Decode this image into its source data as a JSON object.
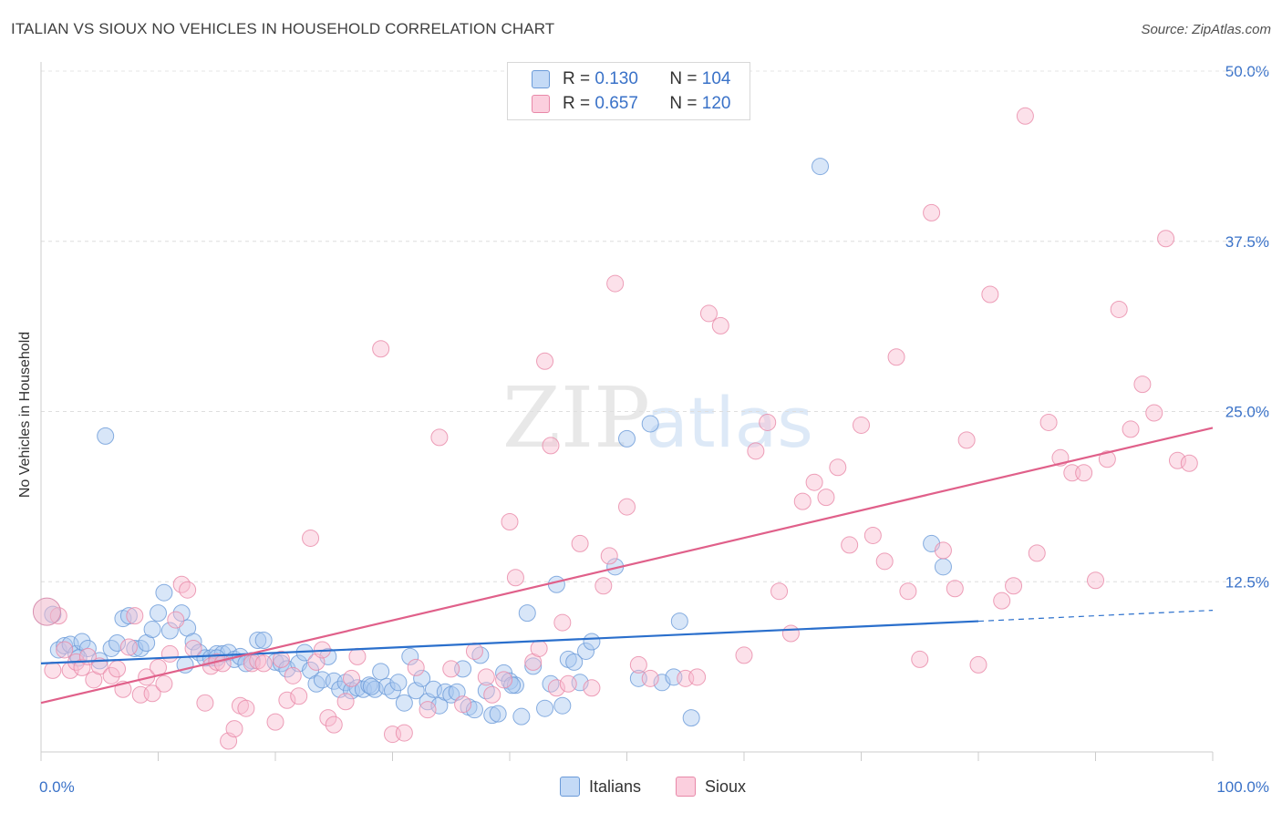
{
  "title": "ITALIAN VS SIOUX NO VEHICLES IN HOUSEHOLD CORRELATION CHART",
  "source": "Source: ZipAtlas.com",
  "watermark": {
    "zip": "ZIP",
    "atlas": "atlas"
  },
  "legend": {
    "rows": [
      {
        "r_label": "R =",
        "r_value": "0.130",
        "n_label": "N =",
        "n_value": "104",
        "color": "#a8c8f0",
        "edge": "#6a9ad8"
      },
      {
        "r_label": "R =",
        "r_value": "0.657",
        "n_label": "N =",
        "n_value": "120",
        "color": "#f8bcd0",
        "edge": "#e888a8"
      }
    ]
  },
  "bottom_legend": [
    {
      "label": "Italians",
      "color": "#a8c8f0",
      "edge": "#6a9ad8"
    },
    {
      "label": "Sioux",
      "color": "#f8bcd0",
      "edge": "#e888a8"
    }
  ],
  "chart_data": {
    "type": "scatter",
    "title": "ITALIAN VS SIOUX NO VEHICLES IN HOUSEHOLD CORRELATION CHART",
    "xlabel": "",
    "ylabel": "No Vehicles in Household",
    "x_tick_labels": [
      "0.0%",
      "100.0%"
    ],
    "y_tick_labels": [
      "12.5%",
      "25.0%",
      "37.5%",
      "50.0%"
    ],
    "y_ticks": [
      12.5,
      25.0,
      37.5,
      50.0
    ],
    "xlim": [
      0,
      100
    ],
    "ylim": [
      0,
      50
    ],
    "grid": true,
    "legend_position": "top-center",
    "series": [
      {
        "name": "Italians",
        "color": "#a8c8f0",
        "line_color": "#2a6fcc",
        "trend": {
          "x": [
            0,
            80
          ],
          "y": [
            6.5,
            9.6
          ],
          "dashed_to": [
            100,
            10.4
          ]
        },
        "points": [
          [
            1.5,
            7.5
          ],
          [
            2,
            7.8
          ],
          [
            2.5,
            7.9
          ],
          [
            3,
            7.2
          ],
          [
            3.5,
            8.1
          ],
          [
            4,
            7.6
          ],
          [
            5,
            6.7
          ],
          [
            6,
            7.6
          ],
          [
            7,
            9.8
          ],
          [
            7.5,
            10
          ],
          [
            8,
            7.6
          ],
          [
            8.5,
            7.6
          ],
          [
            9,
            8
          ],
          [
            9.5,
            9
          ],
          [
            10,
            10.2
          ],
          [
            10.5,
            11.7
          ],
          [
            11,
            8.9
          ],
          [
            12,
            10.2
          ],
          [
            12.5,
            9.1
          ],
          [
            13,
            8.1
          ],
          [
            13.5,
            7.3
          ],
          [
            14,
            6.9
          ],
          [
            14.5,
            6.9
          ],
          [
            15,
            7.2
          ],
          [
            15.5,
            7.2
          ],
          [
            16,
            7.3
          ],
          [
            16.5,
            6.8
          ],
          [
            17,
            7
          ],
          [
            18,
            6.7
          ],
          [
            18.5,
            8.2
          ],
          [
            19,
            8.2
          ],
          [
            20,
            6.6
          ],
          [
            20.5,
            6.5
          ],
          [
            21,
            6.1
          ],
          [
            22,
            6.5
          ],
          [
            22.5,
            7.3
          ],
          [
            23,
            6
          ],
          [
            23.5,
            5
          ],
          [
            24,
            5.3
          ],
          [
            24.5,
            7
          ],
          [
            25,
            5.2
          ],
          [
            25.5,
            4.6
          ],
          [
            26,
            5.1
          ],
          [
            26.5,
            4.5
          ],
          [
            27,
            4.7
          ],
          [
            27.5,
            4.6
          ],
          [
            28,
            4.9
          ],
          [
            28.5,
            4.6
          ],
          [
            29,
            5.9
          ],
          [
            29.5,
            4.8
          ],
          [
            30,
            4.5
          ],
          [
            30.5,
            5.1
          ],
          [
            31,
            3.6
          ],
          [
            31.5,
            7
          ],
          [
            32,
            4.5
          ],
          [
            32.5,
            5.4
          ],
          [
            33,
            3.7
          ],
          [
            33.5,
            4.6
          ],
          [
            34,
            3.4
          ],
          [
            34.5,
            4.4
          ],
          [
            35,
            4.2
          ],
          [
            35.5,
            4.4
          ],
          [
            36,
            6.1
          ],
          [
            36.5,
            3.3
          ],
          [
            37,
            3.1
          ],
          [
            37.5,
            7.1
          ],
          [
            38,
            4.5
          ],
          [
            38.5,
            2.7
          ],
          [
            39,
            2.8
          ],
          [
            39.5,
            5.8
          ],
          [
            40,
            5.2
          ],
          [
            40.5,
            4.9
          ],
          [
            41,
            2.6
          ],
          [
            41.5,
            10.2
          ],
          [
            42,
            6.3
          ],
          [
            43,
            3.2
          ],
          [
            43.5,
            5
          ],
          [
            44,
            12.3
          ],
          [
            44.5,
            3.4
          ],
          [
            45,
            6.8
          ],
          [
            45.5,
            6.6
          ],
          [
            46,
            5.1
          ],
          [
            46.5,
            7.4
          ],
          [
            47,
            8.1
          ],
          [
            49,
            13.6
          ],
          [
            50,
            23
          ],
          [
            51,
            5.4
          ],
          [
            52,
            24.1
          ],
          [
            53,
            5.1
          ],
          [
            54,
            5.5
          ],
          [
            54.5,
            9.6
          ],
          [
            55.5,
            2.5
          ],
          [
            5.5,
            23.2
          ],
          [
            66.5,
            43
          ],
          [
            76,
            15.3
          ],
          [
            77,
            13.6
          ],
          [
            1,
            10.1
          ],
          [
            3.2,
            6.9
          ],
          [
            6.5,
            8
          ],
          [
            12.3,
            6.4
          ],
          [
            15,
            6.9
          ],
          [
            17.5,
            6.5
          ],
          [
            28.2,
            4.8
          ],
          [
            40.2,
            4.9
          ]
        ]
      },
      {
        "name": "Sioux",
        "color": "#f8bcd0",
        "line_color": "#e0608a",
        "trend": {
          "x": [
            0,
            100
          ],
          "y": [
            3.6,
            23.8
          ]
        },
        "points": [
          [
            1,
            6
          ],
          [
            1.5,
            10
          ],
          [
            2,
            7.5
          ],
          [
            2.5,
            6
          ],
          [
            3,
            6.6
          ],
          [
            3.5,
            6.2
          ],
          [
            4,
            7
          ],
          [
            4.5,
            5.3
          ],
          [
            5,
            6.3
          ],
          [
            6,
            5.6
          ],
          [
            6.5,
            6.1
          ],
          [
            7,
            4.6
          ],
          [
            7.5,
            7.7
          ],
          [
            8,
            10
          ],
          [
            8.5,
            4.2
          ],
          [
            9,
            5.5
          ],
          [
            9.5,
            4.3
          ],
          [
            10,
            6.2
          ],
          [
            10.5,
            5
          ],
          [
            11,
            7.2
          ],
          [
            11.5,
            9.7
          ],
          [
            12,
            12.3
          ],
          [
            12.5,
            11.9
          ],
          [
            13,
            7.6
          ],
          [
            14,
            3.6
          ],
          [
            14.5,
            6.3
          ],
          [
            15,
            6.6
          ],
          [
            15.5,
            6.5
          ],
          [
            16,
            0.8
          ],
          [
            16.5,
            1.7
          ],
          [
            17,
            3.4
          ],
          [
            17.5,
            3.2
          ],
          [
            18,
            6.5
          ],
          [
            18.5,
            6.7
          ],
          [
            19,
            6.5
          ],
          [
            20,
            2.2
          ],
          [
            20.5,
            6.8
          ],
          [
            21,
            3.8
          ],
          [
            21.5,
            5.6
          ],
          [
            22,
            4.1
          ],
          [
            23,
            15.7
          ],
          [
            23.5,
            6.6
          ],
          [
            24,
            7.5
          ],
          [
            24.5,
            2.5
          ],
          [
            25,
            2
          ],
          [
            26,
            3.7
          ],
          [
            26.5,
            5.4
          ],
          [
            27,
            7
          ],
          [
            29,
            29.6
          ],
          [
            30,
            1.3
          ],
          [
            31,
            1.4
          ],
          [
            32,
            6.2
          ],
          [
            33,
            3.1
          ],
          [
            34,
            23.1
          ],
          [
            35,
            6.1
          ],
          [
            36,
            3.5
          ],
          [
            37,
            7.4
          ],
          [
            38,
            5.5
          ],
          [
            38.5,
            4.2
          ],
          [
            39.5,
            5.3
          ],
          [
            40,
            16.9
          ],
          [
            40.5,
            12.8
          ],
          [
            42,
            6.6
          ],
          [
            42.5,
            7.6
          ],
          [
            43,
            28.7
          ],
          [
            43.5,
            22.5
          ],
          [
            44,
            4.7
          ],
          [
            44.5,
            9.5
          ],
          [
            45,
            5
          ],
          [
            46,
            15.3
          ],
          [
            47,
            4.7
          ],
          [
            48,
            12.2
          ],
          [
            48.5,
            14.4
          ],
          [
            49,
            34.4
          ],
          [
            50,
            18
          ],
          [
            51,
            6.4
          ],
          [
            52,
            5.4
          ],
          [
            55,
            5.4
          ],
          [
            56,
            5.5
          ],
          [
            57,
            32.2
          ],
          [
            58,
            31.3
          ],
          [
            60,
            7.1
          ],
          [
            61,
            22.1
          ],
          [
            62,
            24.2
          ],
          [
            63,
            11.8
          ],
          [
            64,
            8.7
          ],
          [
            65,
            18.4
          ],
          [
            66,
            19.8
          ],
          [
            67,
            18.7
          ],
          [
            68,
            20.9
          ],
          [
            69,
            15.2
          ],
          [
            70,
            24
          ],
          [
            71,
            15.9
          ],
          [
            72,
            14
          ],
          [
            73,
            29
          ],
          [
            74,
            11.8
          ],
          [
            75,
            6.8
          ],
          [
            76,
            39.6
          ],
          [
            77,
            14.8
          ],
          [
            78,
            12
          ],
          [
            79,
            22.9
          ],
          [
            80,
            6.4
          ],
          [
            81,
            33.6
          ],
          [
            82,
            11.1
          ],
          [
            83,
            12.2
          ],
          [
            84,
            46.7
          ],
          [
            85,
            14.6
          ],
          [
            86,
            24.2
          ],
          [
            87,
            21.6
          ],
          [
            88,
            20.5
          ],
          [
            89,
            20.5
          ],
          [
            90,
            12.6
          ],
          [
            91,
            21.5
          ],
          [
            92,
            32.5
          ],
          [
            93,
            23.7
          ],
          [
            94,
            27
          ],
          [
            95,
            24.9
          ],
          [
            96,
            37.7
          ],
          [
            97,
            21.4
          ],
          [
            98,
            21.2
          ]
        ]
      }
    ]
  }
}
